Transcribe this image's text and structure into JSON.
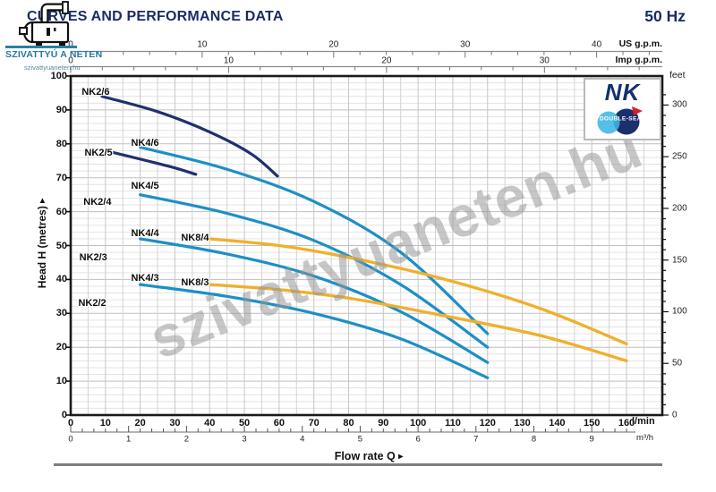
{
  "header": {
    "title": "CURVES AND PERFORMANCE DATA",
    "frequency": "50 Hz"
  },
  "logo": {
    "name": "SZIVATTYÚ A NETEN",
    "url": "szivattyuaneten.hu"
  },
  "brand": {
    "model": "NK",
    "seal": "DOUBLE-SEAL"
  },
  "watermark": {
    "text": "szivattyuaneten.hu"
  },
  "icons": {
    "axis_arrow": "▸",
    "pump_icon": "pump-clipart",
    "double_seal_icon": "two-overlapping-circles"
  },
  "axis_labels": {
    "x": "Flow rate Q",
    "y": "Head H (metres)"
  },
  "units": {
    "lmin": "l/min",
    "m3h": "m³/h",
    "usgpm": "US g.p.m.",
    "impgpm": "Imp g.p.m.",
    "feet": "feet"
  },
  "colors": {
    "navy_curve": "#20306e",
    "blue_curve": "#1d8fc6",
    "yellow_curve": "#efb02e",
    "title_navy": "#1b2b66",
    "logo_teal": "#27789f",
    "grid_minor": "#e3e3e3",
    "grid_major": "#bfbfbf",
    "grid_vert": "#d3d3d3",
    "border": "#1a1a1a",
    "seal_light_blue": "#3db7e4",
    "seal_navy": "#1b2f6d",
    "seal_red": "#d42027"
  },
  "chart_data": {
    "type": "line",
    "title": "CURVES AND PERFORMANCE DATA",
    "xlabel": "Flow rate Q",
    "ylabel": "Head H (metres)",
    "grid": true,
    "xlim_lmin": [
      0,
      170
    ],
    "ylim_m": [
      0,
      100
    ],
    "x_axes": [
      {
        "unit": "l/min",
        "ticks": [
          0,
          10,
          20,
          30,
          40,
          50,
          60,
          70,
          80,
          90,
          100,
          110,
          120,
          130,
          140,
          150,
          160
        ]
      },
      {
        "unit": "m³/h",
        "ticks": [
          0,
          1,
          2,
          3,
          4,
          5,
          6,
          7,
          8,
          9
        ]
      },
      {
        "unit": "US g.p.m.",
        "ticks": [
          0,
          10,
          20,
          30,
          40
        ]
      },
      {
        "unit": "Imp g.p.m.",
        "ticks": [
          0,
          10,
          20,
          30
        ]
      }
    ],
    "y_axes": [
      {
        "unit": "metres",
        "ticks": [
          0,
          10,
          20,
          30,
          40,
          50,
          60,
          70,
          80,
          90,
          100
        ]
      },
      {
        "unit": "feet",
        "ticks": [
          0,
          50,
          100,
          150,
          200,
          250,
          300
        ]
      }
    ],
    "series": [
      {
        "name": "NK2/6",
        "color": "#20306e",
        "label_at": [
          7.2,
          95.3
        ],
        "points": [
          [
            9,
            94
          ],
          [
            25,
            89.5
          ],
          [
            40,
            83.5
          ],
          [
            52,
            77
          ],
          [
            59.5,
            70.5
          ]
        ]
      },
      {
        "name": "NK4/6",
        "color": "#1d8fc6",
        "label_at": [
          21.4,
          80.3
        ],
        "points": [
          [
            20,
            79
          ],
          [
            45,
            72.5
          ],
          [
            70,
            63
          ],
          [
            95,
            48
          ],
          [
            120,
            24
          ]
        ]
      },
      {
        "name": "NK2/5",
        "color": "#20306e",
        "label_at": [
          8,
          77.2
        ],
        "points": [
          [
            10,
            78
          ],
          [
            22,
            75
          ],
          [
            30,
            72.9
          ],
          [
            36,
            71
          ]
        ]
      },
      {
        "name": "NK4/5",
        "color": "#1d8fc6",
        "label_at": [
          21.4,
          67.5
        ],
        "points": [
          [
            20,
            65
          ],
          [
            45,
            59.5
          ],
          [
            70,
            51.5
          ],
          [
            95,
            38.5
          ],
          [
            120,
            20
          ]
        ]
      },
      {
        "name": "NK2/4",
        "color": "#20306e",
        "label_at": [
          7.7,
          62.8
        ],
        "points": []
      },
      {
        "name": "NK4/4",
        "color": "#1d8fc6",
        "label_at": [
          21.4,
          53.6
        ],
        "points": [
          [
            20,
            52
          ],
          [
            45,
            47.5
          ],
          [
            70,
            41
          ],
          [
            95,
            30.5
          ],
          [
            120,
            15.5
          ]
        ]
      },
      {
        "name": "NK8/4",
        "color": "#efb02e",
        "label_at": [
          35.8,
          52.3
        ],
        "points": [
          [
            40,
            52
          ],
          [
            60,
            50
          ],
          [
            80,
            46.5
          ],
          [
            106,
            40.5
          ],
          [
            135,
            31.5
          ],
          [
            160,
            21
          ]
        ]
      },
      {
        "name": "NK2/3",
        "color": "#20306e",
        "label_at": [
          6.5,
          46.5
        ],
        "points": []
      },
      {
        "name": "NK4/3",
        "color": "#1d8fc6",
        "label_at": [
          21.4,
          40.3
        ],
        "points": [
          [
            20,
            38.5
          ],
          [
            45,
            35
          ],
          [
            70,
            30
          ],
          [
            95,
            22.5
          ],
          [
            120,
            11
          ]
        ]
      },
      {
        "name": "NK8/3",
        "color": "#efb02e",
        "label_at": [
          35.8,
          39.0
        ],
        "points": [
          [
            40,
            38.5
          ],
          [
            60,
            37
          ],
          [
            80,
            34.5
          ],
          [
            106,
            29.6
          ],
          [
            135,
            23.5
          ],
          [
            160,
            16
          ]
        ]
      },
      {
        "name": "NK2/2",
        "color": "#20306e",
        "label_at": [
          6.2,
          33.0
        ],
        "points": []
      }
    ]
  }
}
